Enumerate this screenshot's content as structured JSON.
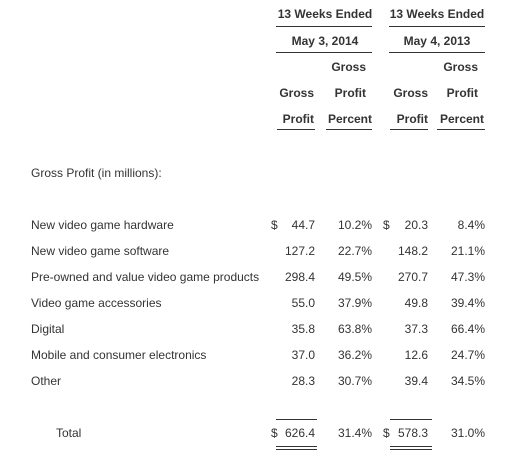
{
  "header": {
    "period1_line1": "13 Weeks Ended",
    "period1_line2": "May 3, 2014",
    "period2_line1": "13 Weeks Ended",
    "period2_line2": "May 4, 2013",
    "col_gross_profit_line1": "Gross",
    "col_gross_profit_line2": "Profit",
    "col_gross_profit_pct_line1": "Gross",
    "col_gross_profit_pct_line2": "Profit",
    "col_gross_profit_pct_line3": "Percent"
  },
  "section_title": "Gross Profit (in millions):",
  "currency_symbol": "$",
  "rows": [
    {
      "label": "New video game hardware",
      "gp_2014": "44.7",
      "pct_2014": "10.2%",
      "gp_2013": "20.3",
      "pct_2013": "8.4%"
    },
    {
      "label": "New video game software",
      "gp_2014": "127.2",
      "pct_2014": "22.7%",
      "gp_2013": "148.2",
      "pct_2013": "21.1%"
    },
    {
      "label": "Pre-owned and value video game products",
      "gp_2014": "298.4",
      "pct_2014": "49.5%",
      "gp_2013": "270.7",
      "pct_2013": "47.3%"
    },
    {
      "label": "Video game accessories",
      "gp_2014": "55.0",
      "pct_2014": "37.9%",
      "gp_2013": "49.8",
      "pct_2013": "39.4%"
    },
    {
      "label": "Digital",
      "gp_2014": "35.8",
      "pct_2014": "63.8%",
      "gp_2013": "37.3",
      "pct_2013": "66.4%"
    },
    {
      "label": "Mobile and consumer electronics",
      "gp_2014": "37.0",
      "pct_2014": "36.2%",
      "gp_2013": "12.6",
      "pct_2013": "24.7%"
    },
    {
      "label": "Other",
      "gp_2014": "28.3",
      "pct_2014": "30.7%",
      "gp_2013": "39.4",
      "pct_2013": "34.5%"
    }
  ],
  "total": {
    "label": "Total",
    "gp_2014": "626.4",
    "pct_2014": "31.4%",
    "gp_2013": "578.3",
    "pct_2013": "31.0%"
  }
}
